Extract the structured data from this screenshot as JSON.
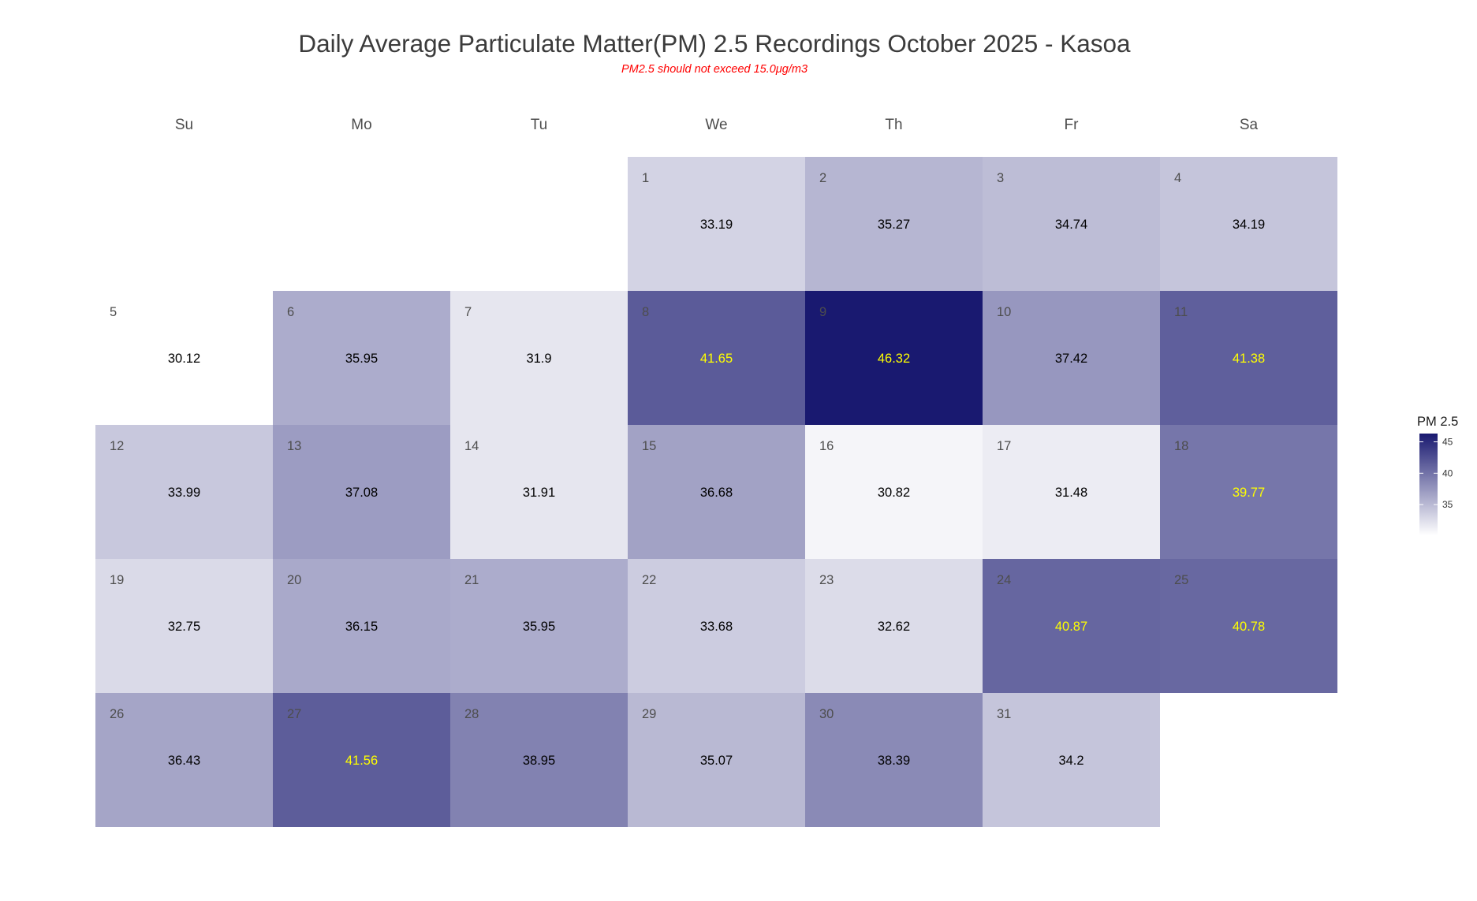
{
  "chart_data": {
    "type": "heatmap",
    "title": "Daily Average Particulate Matter(PM) 2.5 Recordings October 2025 -  Kasoa",
    "subtitle": "PM2.5 should not exceed 15.0μg/m3",
    "weekdays": [
      "Su",
      "Mo",
      "Tu",
      "We",
      "Th",
      "Fr",
      "Sa"
    ],
    "first_weekday_index": 3,
    "days": [
      {
        "day": "1",
        "value": 33.19,
        "label": "33.19"
      },
      {
        "day": "2",
        "value": 35.27,
        "label": "35.27"
      },
      {
        "day": "3",
        "value": 34.74,
        "label": "34.74"
      },
      {
        "day": "4",
        "value": 34.19,
        "label": "34.19"
      },
      {
        "day": "5",
        "value": 30.12,
        "label": "30.12"
      },
      {
        "day": "6",
        "value": 35.95,
        "label": "35.95"
      },
      {
        "day": "7",
        "value": 31.9,
        "label": "31.9"
      },
      {
        "day": "8",
        "value": 41.65,
        "label": "41.65"
      },
      {
        "day": "9",
        "value": 46.32,
        "label": "46.32"
      },
      {
        "day": "10",
        "value": 37.42,
        "label": "37.42"
      },
      {
        "day": "11",
        "value": 41.38,
        "label": "41.38"
      },
      {
        "day": "12",
        "value": 33.99,
        "label": "33.99"
      },
      {
        "day": "13",
        "value": 37.08,
        "label": "37.08"
      },
      {
        "day": "14",
        "value": 31.91,
        "label": "31.91"
      },
      {
        "day": "15",
        "value": 36.68,
        "label": "36.68"
      },
      {
        "day": "16",
        "value": 30.82,
        "label": "30.82"
      },
      {
        "day": "17",
        "value": 31.48,
        "label": "31.48"
      },
      {
        "day": "18",
        "value": 39.77,
        "label": "39.77"
      },
      {
        "day": "19",
        "value": 32.75,
        "label": "32.75"
      },
      {
        "day": "20",
        "value": 36.15,
        "label": "36.15"
      },
      {
        "day": "21",
        "value": 35.95,
        "label": "35.95"
      },
      {
        "day": "22",
        "value": 33.68,
        "label": "33.68"
      },
      {
        "day": "23",
        "value": 32.62,
        "label": "32.62"
      },
      {
        "day": "24",
        "value": 40.87,
        "label": "40.87"
      },
      {
        "day": "25",
        "value": 40.78,
        "label": "40.78"
      },
      {
        "day": "26",
        "value": 36.43,
        "label": "36.43"
      },
      {
        "day": "27",
        "value": 41.56,
        "label": "41.56"
      },
      {
        "day": "28",
        "value": 38.95,
        "label": "38.95"
      },
      {
        "day": "29",
        "value": 35.07,
        "label": "35.07"
      },
      {
        "day": "30",
        "value": 38.39,
        "label": "38.39"
      },
      {
        "day": "31",
        "value": 34.2,
        "label": "34.2"
      }
    ],
    "color_scale": {
      "low": "#ffffff",
      "high": "#191970",
      "min": 30.12,
      "max": 46.32,
      "value_text_color_default": "#000000",
      "value_text_color_high": "#ffff00",
      "high_text_threshold": 39.5
    },
    "legend": {
      "title": "PM 2.5",
      "ticks": [
        35,
        40,
        45
      ],
      "placement": "right"
    }
  }
}
